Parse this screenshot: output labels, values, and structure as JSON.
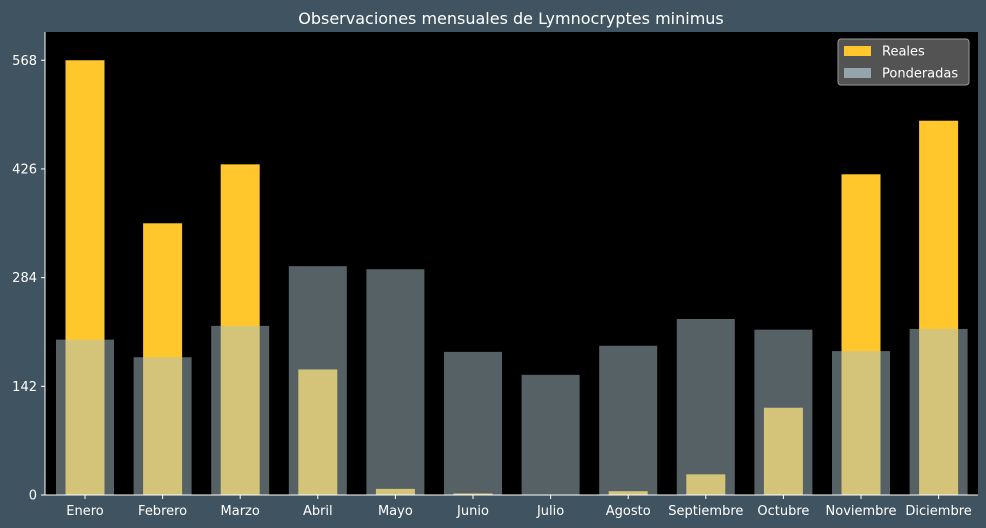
{
  "chart_data": {
    "type": "bar",
    "title": "Observaciones mensuales de Lymnocryptes minimus",
    "xlabel": "",
    "ylabel": "",
    "categories": [
      "Enero",
      "Febrero",
      "Marzo",
      "Abril",
      "Mayo",
      "Junio",
      "Julio",
      "Agosto",
      "Septiembre",
      "Octubre",
      "Noviembre",
      "Diciembre"
    ],
    "series": [
      {
        "name": "Reales",
        "color": "#ffc72c",
        "values": [
          568,
          355,
          432,
          164,
          8,
          2,
          0,
          5,
          27,
          114,
          419,
          489
        ]
      },
      {
        "name": "Ponderadas",
        "color": "#a9c1c8",
        "opacity": 0.5,
        "values": [
          203,
          180,
          221,
          299,
          295,
          187,
          157,
          195,
          230,
          216,
          188,
          217
        ]
      }
    ],
    "yticks": [
      0,
      142,
      284,
      426,
      568
    ],
    "ylim": [
      0,
      568
    ],
    "legend_position": "top-right",
    "grid": false,
    "colors": {
      "plot_bg": "#000000",
      "figure_bg": "#3f5460",
      "text": "#ffffff"
    }
  }
}
